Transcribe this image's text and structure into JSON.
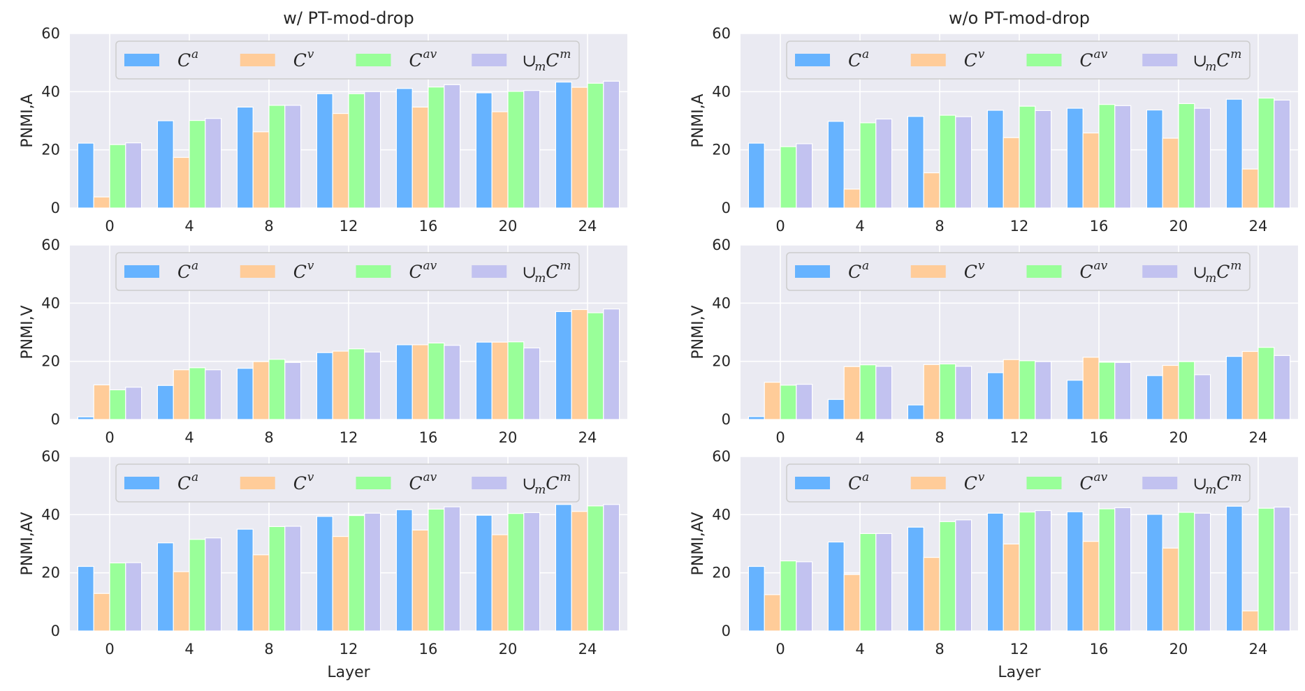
{
  "colors": {
    "Ca": "#66b3ff",
    "Cv": "#ffcc99",
    "Cav": "#99ff99",
    "UmCm": "#c2c2f0",
    "plot_bg": "#eaeaf2",
    "grid": "#ffffff"
  },
  "legend": {
    "entries": [
      {
        "key": "Ca",
        "base": "C",
        "sup": "a",
        "prefix": ""
      },
      {
        "key": "Cv",
        "base": "C",
        "sup": "v",
        "prefix": ""
      },
      {
        "key": "Cav",
        "base": "C",
        "sup": "av",
        "prefix": ""
      },
      {
        "key": "UmCm",
        "base": "C",
        "sup": "m",
        "prefix": "∪",
        "prefix_sub": "m"
      }
    ],
    "placement": "top-center"
  },
  "chart_data": [
    {
      "type": "bar",
      "column": "left",
      "row": 0,
      "title": "w/ PT-mod-drop",
      "ylabel": "PNMI,A",
      "xlabel": "",
      "categories": [
        "0",
        "4",
        "8",
        "12",
        "16",
        "20",
        "24"
      ],
      "ylim": [
        0,
        60
      ],
      "yticks": [
        "0",
        "20",
        "40",
        "60"
      ],
      "grid": true,
      "series": [
        {
          "key": "Ca",
          "values": [
            22.3,
            30.0,
            34.7,
            39.3,
            41.1,
            39.6,
            43.3
          ]
        },
        {
          "key": "Cv",
          "values": [
            3.8,
            17.4,
            26.2,
            32.5,
            34.7,
            33.1,
            41.5
          ]
        },
        {
          "key": "Cav",
          "values": [
            21.8,
            30.1,
            35.3,
            39.3,
            41.6,
            40.1,
            42.9
          ]
        },
        {
          "key": "UmCm",
          "values": [
            22.4,
            30.8,
            35.3,
            40.0,
            42.4,
            40.4,
            43.6
          ]
        }
      ]
    },
    {
      "type": "bar",
      "column": "right",
      "row": 0,
      "title": "w/o PT-mod-drop",
      "ylabel": "PNMI,A",
      "xlabel": "",
      "categories": [
        "0",
        "4",
        "8",
        "12",
        "16",
        "20",
        "24"
      ],
      "ylim": [
        0,
        60
      ],
      "yticks": [
        "0",
        "20",
        "40",
        "60"
      ],
      "grid": true,
      "series": [
        {
          "key": "Ca",
          "values": [
            22.3,
            29.8,
            31.5,
            33.6,
            34.3,
            33.7,
            37.4
          ]
        },
        {
          "key": "Cv",
          "values": [
            0,
            6.5,
            12.1,
            24.2,
            25.8,
            24.0,
            13.4
          ]
        },
        {
          "key": "Cav",
          "values": [
            21.1,
            29.3,
            31.9,
            35.0,
            35.6,
            35.9,
            37.8
          ]
        },
        {
          "key": "UmCm",
          "values": [
            22.1,
            30.6,
            31.4,
            33.5,
            35.2,
            34.3,
            37.1
          ]
        }
      ]
    },
    {
      "type": "bar",
      "column": "left",
      "row": 1,
      "title": "",
      "ylabel": "PNMI,V",
      "xlabel": "",
      "categories": [
        "0",
        "4",
        "8",
        "12",
        "16",
        "20",
        "24"
      ],
      "ylim": [
        0,
        60
      ],
      "yticks": [
        "0",
        "20",
        "40",
        "60"
      ],
      "grid": true,
      "series": [
        {
          "key": "Ca",
          "values": [
            0.9,
            11.7,
            17.6,
            23.0,
            25.7,
            26.6,
            37.1
          ]
        },
        {
          "key": "Cv",
          "values": [
            11.9,
            17.1,
            19.9,
            23.5,
            25.7,
            26.6,
            37.8
          ]
        },
        {
          "key": "Cav",
          "values": [
            10.2,
            17.8,
            20.7,
            24.3,
            26.3,
            26.7,
            36.7
          ]
        },
        {
          "key": "UmCm",
          "values": [
            11.1,
            17.1,
            19.6,
            23.2,
            25.5,
            24.6,
            38.0
          ]
        }
      ]
    },
    {
      "type": "bar",
      "column": "right",
      "row": 1,
      "title": "",
      "ylabel": "PNMI,V",
      "xlabel": "",
      "categories": [
        "0",
        "4",
        "8",
        "12",
        "16",
        "20",
        "24"
      ],
      "ylim": [
        0,
        60
      ],
      "yticks": [
        "0",
        "20",
        "40",
        "60"
      ],
      "grid": true,
      "series": [
        {
          "key": "Ca",
          "values": [
            1.0,
            6.9,
            5.0,
            16.1,
            13.5,
            15.1,
            21.7
          ]
        },
        {
          "key": "Cv",
          "values": [
            12.8,
            18.2,
            18.9,
            20.6,
            21.4,
            18.6,
            23.4
          ]
        },
        {
          "key": "Cav",
          "values": [
            11.8,
            18.8,
            19.1,
            20.2,
            19.7,
            19.9,
            24.8
          ]
        },
        {
          "key": "UmCm",
          "values": [
            12.1,
            18.3,
            18.3,
            19.9,
            19.6,
            15.4,
            22.0
          ]
        }
      ]
    },
    {
      "type": "bar",
      "column": "left",
      "row": 2,
      "title": "",
      "ylabel": "PNMI,AV",
      "xlabel": "Layer",
      "categories": [
        "0",
        "4",
        "8",
        "12",
        "16",
        "20",
        "24"
      ],
      "ylim": [
        0,
        60
      ],
      "yticks": [
        "0",
        "20",
        "40",
        "60"
      ],
      "grid": true,
      "series": [
        {
          "key": "Ca",
          "values": [
            22.2,
            30.3,
            35.0,
            39.4,
            41.7,
            39.8,
            43.5
          ]
        },
        {
          "key": "Cv",
          "values": [
            12.9,
            20.4,
            26.2,
            32.5,
            34.7,
            33.1,
            41.1
          ]
        },
        {
          "key": "Cav",
          "values": [
            23.4,
            31.5,
            35.9,
            39.7,
            41.9,
            40.4,
            43.0
          ]
        },
        {
          "key": "UmCm",
          "values": [
            23.5,
            32.0,
            36.0,
            40.5,
            42.7,
            40.7,
            43.5
          ]
        }
      ]
    },
    {
      "type": "bar",
      "column": "right",
      "row": 2,
      "title": "",
      "ylabel": "PNMI,AV",
      "xlabel": "Layer",
      "categories": [
        "0",
        "4",
        "8",
        "12",
        "16",
        "20",
        "24"
      ],
      "ylim": [
        0,
        60
      ],
      "yticks": [
        "0",
        "20",
        "40",
        "60"
      ],
      "grid": true,
      "series": [
        {
          "key": "Ca",
          "values": [
            22.2,
            30.6,
            35.7,
            40.5,
            41.0,
            40.1,
            42.9
          ]
        },
        {
          "key": "Cv",
          "values": [
            12.5,
            19.4,
            25.3,
            29.9,
            30.8,
            28.5,
            6.9
          ]
        },
        {
          "key": "Cav",
          "values": [
            24.1,
            33.5,
            37.6,
            40.9,
            42.0,
            40.8,
            42.2
          ]
        },
        {
          "key": "UmCm",
          "values": [
            23.8,
            33.5,
            38.2,
            41.4,
            42.4,
            40.5,
            42.6
          ]
        }
      ]
    }
  ]
}
